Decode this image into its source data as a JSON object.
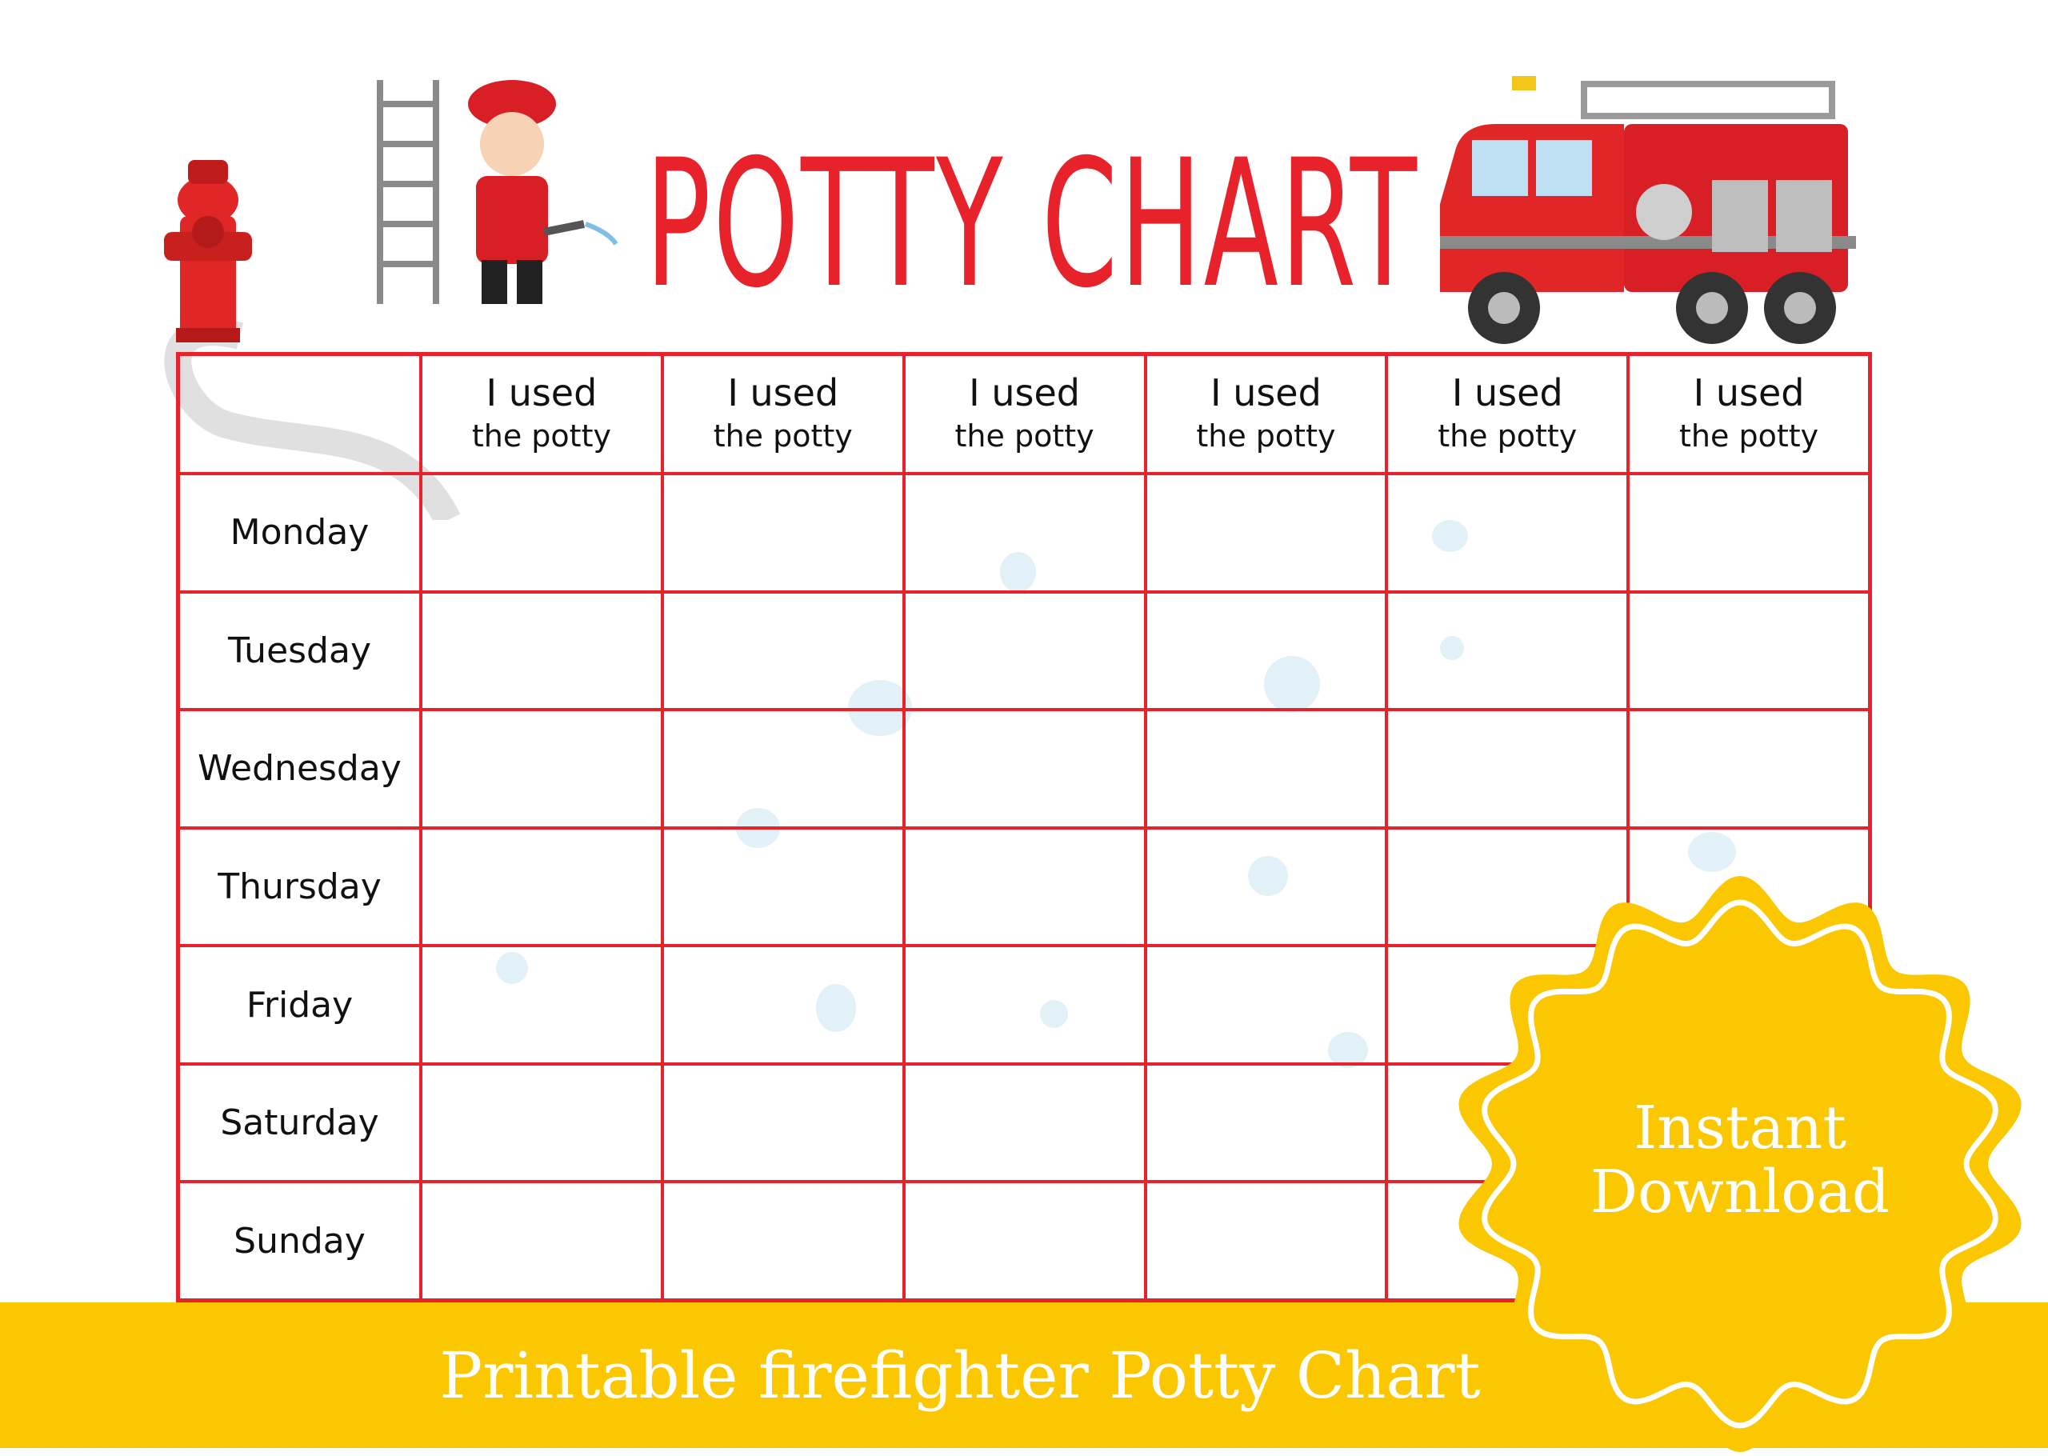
{
  "title": "POTTY CHART",
  "table": {
    "column_headers": [
      {
        "line1": "I used",
        "line2": "the potty"
      },
      {
        "line1": "I used",
        "line2": "the potty"
      },
      {
        "line1": "I used",
        "line2": "the potty"
      },
      {
        "line1": "I used",
        "line2": "the potty"
      },
      {
        "line1": "I used",
        "line2": "the potty"
      },
      {
        "line1": "I used",
        "line2": "the potty"
      }
    ],
    "rows": [
      "Monday",
      "Tuesday",
      "Wednesday",
      "Thursday",
      "Friday",
      "Saturday",
      "Sunday"
    ]
  },
  "badge": {
    "line1": "Instant",
    "line2": "Download"
  },
  "footer": "Printable firefighter Potty Chart",
  "colors": {
    "accent_red": "#E8222A",
    "banner_yellow": "#FBC700",
    "splash_blue": "#cfe6f3"
  },
  "illustrations": [
    "fire-hydrant",
    "ladder",
    "firefighter",
    "fire-truck",
    "fire-hose"
  ]
}
